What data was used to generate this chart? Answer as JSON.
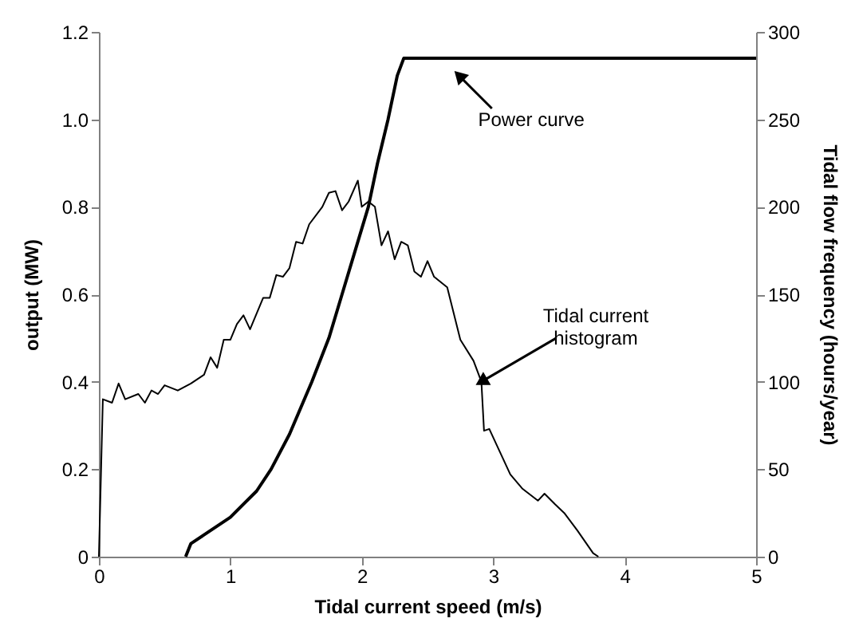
{
  "chart_data": {
    "type": "line",
    "xlabel": "Tidal current speed (m/s)",
    "ylabel": "output (MW)",
    "y2label": "Tidal flow frequency (hours/year)",
    "xlim": [
      0,
      5
    ],
    "xticks": [
      0,
      1,
      2,
      3,
      4,
      5
    ],
    "ylim": [
      0,
      1.2
    ],
    "yticks": [
      0,
      0.2,
      0.4,
      0.6,
      0.8,
      {
        "value": 1,
        "label": "1.0"
      },
      1.2
    ],
    "y2lim": [
      0,
      300
    ],
    "y2ticks": [
      0,
      50,
      100,
      150,
      200,
      250,
      300
    ],
    "grid": false,
    "annotations": [
      {
        "text": "Power curve",
        "x": 2.74,
        "y": 1.1
      },
      {
        "text": "Tidal current histogram",
        "x": 2.91,
        "y": 0.4
      }
    ],
    "series": [
      {
        "color": "#000000",
        "x": [
          0.66,
          0.7,
          0.8,
          1.0,
          1.1,
          1.2,
          1.31,
          1.45,
          1.62,
          1.75,
          1.85,
          1.95,
          2.05,
          2.12,
          2.2,
          2.27,
          2.32,
          5
        ],
        "values": [
          0,
          0.03,
          0.05,
          0.09,
          0.12,
          0.15,
          0.2,
          0.28,
          0.4,
          0.5,
          0.6,
          0.7,
          0.8,
          0.9,
          1.0,
          1.1,
          1.14,
          1.14
        ]
      },
      {
        "color": "#000000",
        "axis": "y2",
        "x": [
          0,
          0.03,
          0.1,
          0.15,
          0.2,
          0.3,
          0.35,
          0.4,
          0.45,
          0.5,
          0.6,
          0.7,
          0.8,
          0.85,
          0.9,
          0.95,
          1.0,
          1.05,
          1.1,
          1.15,
          1.25,
          1.3,
          1.35,
          1.4,
          1.45,
          1.5,
          1.55,
          1.6,
          1.7,
          1.75,
          1.8,
          1.85,
          1.9,
          1.97,
          2.0,
          2.05,
          2.1,
          2.15,
          2.2,
          2.25,
          2.3,
          2.35,
          2.4,
          2.45,
          2.5,
          2.55,
          2.65,
          2.75,
          2.85,
          2.91,
          2.93,
          2.97,
          3.05,
          3.13,
          3.22,
          3.34,
          3.39,
          3.47,
          3.54,
          3.64,
          3.76,
          3.8
        ],
        "values": [
          0,
          90,
          88,
          99,
          90,
          93,
          88,
          95,
          93,
          98,
          95,
          99,
          104,
          114,
          108,
          124,
          124,
          133,
          138,
          130,
          148,
          148,
          161,
          160,
          165,
          180,
          179,
          190,
          200,
          208,
          209,
          198,
          203,
          215,
          200,
          203,
          200,
          178,
          186,
          170,
          180,
          178,
          163,
          160,
          169,
          160,
          154,
          124,
          112,
          100,
          72,
          73,
          60,
          47,
          39,
          32,
          36,
          30,
          25,
          15,
          2,
          0
        ]
      }
    ]
  }
}
